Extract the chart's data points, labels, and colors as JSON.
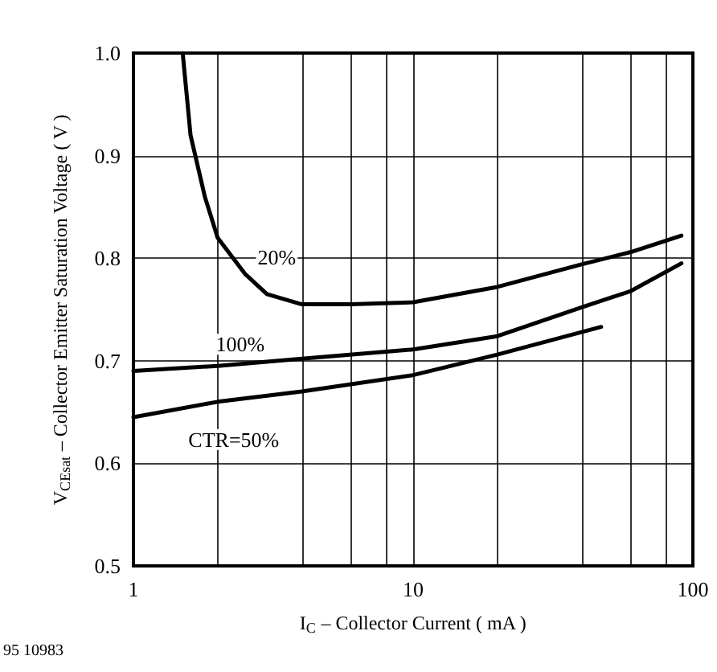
{
  "chart_data": {
    "type": "line",
    "xlabel": "I$_{C}$ – Collector Current ( mA )",
    "ylabel": "V$_{CEsat}$ – Collector Emitter Saturation Voltage ( V )",
    "log": "x",
    "grid": true,
    "legend": false,
    "marker": "none",
    "line_style": "solid",
    "xlim": [
      1,
      100
    ],
    "xticks": [
      1,
      {
        "value": 2,
        "label": null
      },
      {
        "value": 4,
        "label": null
      },
      {
        "value": 6,
        "label": null
      },
      {
        "value": 8,
        "label": null
      },
      10,
      {
        "value": 20,
        "label": null
      },
      {
        "value": 40,
        "label": null
      },
      {
        "value": 60,
        "label": null
      },
      {
        "value": 80,
        "label": null
      },
      100
    ],
    "ylim": [
      0.5,
      1.0
    ],
    "yticks": [
      0.5,
      0.6,
      0.7,
      0.8,
      0.9,
      {
        "value": 1,
        "label": "1.0"
      }
    ],
    "annotations": [
      "95 10983"
    ],
    "series": [
      {
        "name": "20%",
        "color": "#000000",
        "x": [
          1.5,
          1.6,
          1.8,
          2,
          2.5,
          3,
          4,
          6,
          10,
          20,
          40,
          60,
          91
        ],
        "values": [
          1.0,
          0.92,
          0.86,
          0.82,
          0.785,
          0.765,
          0.755,
          0.755,
          0.757,
          0.772,
          0.794,
          0.806,
          0.822
        ]
      },
      {
        "name": "100%",
        "color": "#000000",
        "x": [
          1,
          2,
          4,
          10,
          20,
          40,
          60,
          91
        ],
        "values": [
          0.69,
          0.695,
          0.702,
          0.711,
          0.724,
          0.752,
          0.768,
          0.795
        ]
      },
      {
        "name": "CTR=50%",
        "color": "#000000",
        "x": [
          1,
          2,
          4,
          10,
          20,
          47
        ],
        "values": [
          0.645,
          0.66,
          0.67,
          0.686,
          0.706,
          0.733
        ]
      }
    ]
  }
}
